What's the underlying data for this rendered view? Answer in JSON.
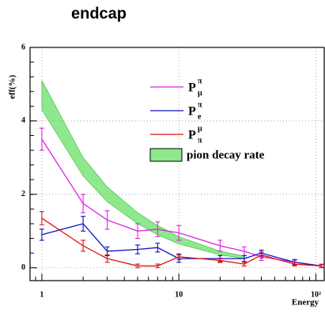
{
  "chart_data": {
    "type": "line",
    "title": "endcap",
    "x_label": "Energy",
    "y_label": "eff(%)",
    "log_x": true,
    "grid": true,
    "xlim": [
      0.82,
      115
    ],
    "xticks": [
      1,
      10,
      {
        "value": 100,
        "label": "10²"
      }
    ],
    "ylim": [
      -0.35,
      6
    ],
    "yticks": [
      0,
      2,
      4,
      6
    ],
    "x": [
      1,
      2,
      3,
      5,
      7,
      10,
      20,
      30,
      40,
      70,
      110
    ],
    "series": [
      {
        "name": "P",
        "superscript": "π",
        "subscript": "μ",
        "color": "#e020e0",
        "values": [
          3.5,
          1.75,
          1.3,
          1.0,
          1.05,
          0.95,
          0.6,
          0.45,
          0.3,
          0.15,
          0.05
        ],
        "errors": [
          0.3,
          0.25,
          0.25,
          0.2,
          0.2,
          0.2,
          0.15,
          0.12,
          0.1,
          0.08,
          0.05
        ]
      },
      {
        "name": "P",
        "superscript": "π",
        "subscript": "e",
        "color": "#1010c8",
        "values": [
          0.9,
          1.2,
          0.45,
          0.5,
          0.55,
          0.25,
          0.25,
          0.25,
          0.4,
          0.15,
          0.05
        ],
        "errors": [
          0.15,
          0.2,
          0.12,
          0.12,
          0.12,
          0.1,
          0.08,
          0.08,
          0.08,
          0.06,
          0.04
        ]
      },
      {
        "name": "P",
        "superscript": "μ",
        "subscript": "π",
        "color": "#e01010",
        "values": [
          1.35,
          0.6,
          0.25,
          0.05,
          0.05,
          0.3,
          0.2,
          0.1,
          0.35,
          0.1,
          0.05
        ],
        "errors": [
          0.18,
          0.15,
          0.1,
          0.05,
          0.05,
          0.08,
          0.06,
          0.05,
          0.08,
          0.05,
          0.04
        ]
      }
    ],
    "band": {
      "name": "pion decay rate",
      "color": "#8ee88e",
      "edge_color": "#33bb33",
      "x": [
        1,
        2,
        3,
        5,
        7,
        10,
        20,
        30
      ],
      "upper": [
        5.1,
        3.0,
        2.2,
        1.5,
        1.15,
        0.85,
        0.45,
        0.32
      ],
      "lower": [
        4.3,
        2.5,
        1.8,
        1.2,
        0.9,
        0.65,
        0.35,
        0.25
      ]
    }
  }
}
